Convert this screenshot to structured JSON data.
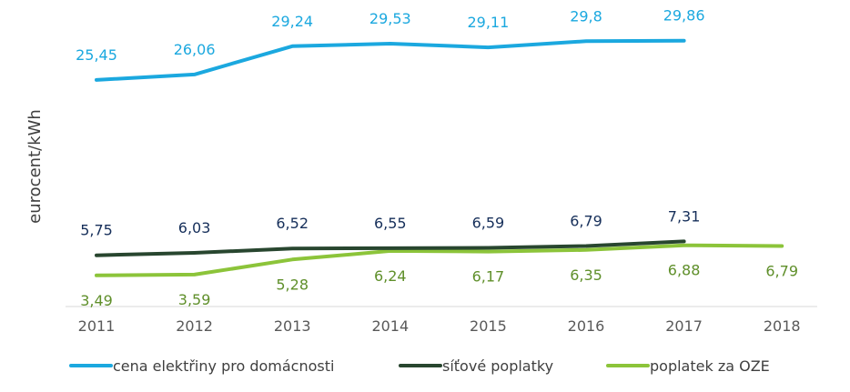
{
  "chart_data": {
    "type": "line",
    "title": "",
    "xlabel": "",
    "ylabel": "eurocent/kWh",
    "ylim": [
      0,
      34
    ],
    "grid": false,
    "legend_position": "bottom",
    "categories": [
      "2011",
      "2012",
      "2013",
      "2014",
      "2015",
      "2016",
      "2017",
      "2018"
    ],
    "series": [
      {
        "name": "cena elektřiny pro domácnosti",
        "color": "#1ba8df",
        "label_color": "#1ba8df",
        "values": [
          25.45,
          26.06,
          29.24,
          29.53,
          29.11,
          29.8,
          29.86,
          null
        ],
        "labels": [
          "25,45",
          "26,06",
          "29,24",
          "29,53",
          "29,11",
          "29,8",
          "29,86",
          null
        ],
        "label_placement": "above"
      },
      {
        "name": "síťové poplatky",
        "color": "#28462f",
        "label_color": "#162f5a",
        "values": [
          5.75,
          6.03,
          6.52,
          6.55,
          6.59,
          6.79,
          7.31,
          null
        ],
        "labels": [
          "5,75",
          "6,03",
          "6,52",
          "6,55",
          "6,59",
          "6,79",
          "7,31",
          null
        ],
        "label_placement": "above"
      },
      {
        "name": "poplatek za OZE",
        "color": "#8cc43a",
        "label_color": "#5f8f2a",
        "values": [
          3.49,
          3.59,
          5.28,
          6.24,
          6.17,
          6.35,
          6.88,
          6.79
        ],
        "labels": [
          "3,49",
          "3,59",
          "5,28",
          "6,24",
          "6,17",
          "6,35",
          "6,88",
          "6,79"
        ],
        "label_placement": "below"
      }
    ]
  }
}
